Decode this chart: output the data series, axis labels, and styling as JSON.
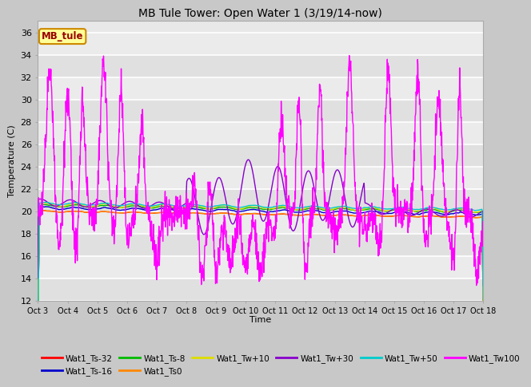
{
  "title": "MB Tule Tower: Open Water 1 (3/19/14-now)",
  "xlabel": "Time",
  "ylabel": "Temperature (C)",
  "ylim": [
    12,
    37
  ],
  "yticks": [
    12,
    14,
    16,
    18,
    20,
    22,
    24,
    26,
    28,
    30,
    32,
    34,
    36
  ],
  "series": [
    {
      "label": "Wat1_Ts-32",
      "color": "#ff0000",
      "lw": 1.0
    },
    {
      "label": "Wat1_Ts-16",
      "color": "#0000cc",
      "lw": 1.0
    },
    {
      "label": "Wat1_Ts-8",
      "color": "#00bb00",
      "lw": 1.0
    },
    {
      "label": "Wat1_Ts0",
      "color": "#ff8800",
      "lw": 1.0
    },
    {
      "label": "Wat1_Tw+10",
      "color": "#dddd00",
      "lw": 1.0
    },
    {
      "label": "Wat1_Tw+30",
      "color": "#8800cc",
      "lw": 1.0
    },
    {
      "label": "Wat1_Tw+50",
      "color": "#00cccc",
      "lw": 1.0
    },
    {
      "label": "Wat1_Tw100",
      "color": "#ff00ff",
      "lw": 1.0
    }
  ],
  "bg_color": "#e8e8e8",
  "grid_color": "#ffffff",
  "legend_box_facecolor": "#ffff99",
  "legend_box_edgecolor": "#cc8800",
  "legend_text": "MB_tule",
  "legend_text_color": "#990000",
  "xtick_labels": [
    "Oct 3",
    "Oct 4",
    "Oct 5",
    "Oct 6",
    "Oct 7",
    "Oct 8",
    "Oct 9",
    "Oct 10",
    "Oct 11",
    "Oct 12",
    "Oct 13",
    "Oct 14",
    "Oct 15",
    "Oct 16",
    "Oct 17",
    "Oct 18"
  ]
}
